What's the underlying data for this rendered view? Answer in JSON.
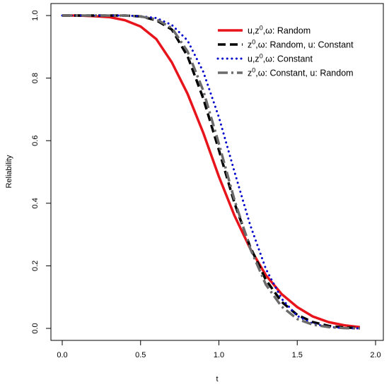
{
  "chart_data": {
    "type": "line",
    "title": "",
    "xlabel": "t",
    "ylabel": "Reliability",
    "xlim": [
      0,
      2
    ],
    "ylim": [
      0,
      1
    ],
    "xticks": [
      "0.0",
      "0.5",
      "1.0",
      "1.5",
      "2.0"
    ],
    "yticks": [
      "0.0",
      "0.2",
      "0.4",
      "0.6",
      "0.8",
      "1.0"
    ],
    "grid": false,
    "legend_position": "top-right",
    "series": [
      {
        "name_parts": [
          "u,z",
          "0",
          ",ω: Random"
        ],
        "color": "#e8141c",
        "style": "solid",
        "points": [
          [
            0.0,
            1.0
          ],
          [
            0.1,
            1.0
          ],
          [
            0.2,
            0.998
          ],
          [
            0.3,
            0.995
          ],
          [
            0.4,
            0.985
          ],
          [
            0.5,
            0.965
          ],
          [
            0.6,
            0.925
          ],
          [
            0.7,
            0.85
          ],
          [
            0.8,
            0.75
          ],
          [
            0.9,
            0.625
          ],
          [
            1.0,
            0.485
          ],
          [
            1.1,
            0.36
          ],
          [
            1.2,
            0.255
          ],
          [
            1.3,
            0.17
          ],
          [
            1.4,
            0.11
          ],
          [
            1.5,
            0.068
          ],
          [
            1.6,
            0.038
          ],
          [
            1.7,
            0.02
          ],
          [
            1.8,
            0.01
          ],
          [
            1.9,
            0.004
          ]
        ]
      },
      {
        "name_parts": [
          "z",
          "0",
          ",ω: Random, u: Constant"
        ],
        "color": "#000000",
        "style": "dash",
        "points": [
          [
            0.0,
            1.0
          ],
          [
            0.1,
            1.0
          ],
          [
            0.2,
            1.0
          ],
          [
            0.3,
            1.0
          ],
          [
            0.4,
            1.0
          ],
          [
            0.5,
            0.997
          ],
          [
            0.6,
            0.985
          ],
          [
            0.7,
            0.955
          ],
          [
            0.8,
            0.87
          ],
          [
            0.9,
            0.735
          ],
          [
            1.0,
            0.57
          ],
          [
            1.1,
            0.4
          ],
          [
            1.2,
            0.26
          ],
          [
            1.3,
            0.155
          ],
          [
            1.4,
            0.085
          ],
          [
            1.5,
            0.043
          ],
          [
            1.6,
            0.02
          ],
          [
            1.7,
            0.008
          ],
          [
            1.8,
            0.003
          ],
          [
            1.9,
            0.001
          ]
        ]
      },
      {
        "name_parts": [
          "u,z",
          "0",
          ",ω: Constant"
        ],
        "color": "#0000cd",
        "style": "dot",
        "points": [
          [
            0.0,
            1.0
          ],
          [
            0.1,
            1.0
          ],
          [
            0.2,
            1.0
          ],
          [
            0.3,
            1.0
          ],
          [
            0.4,
            1.0
          ],
          [
            0.5,
            0.998
          ],
          [
            0.6,
            0.992
          ],
          [
            0.7,
            0.97
          ],
          [
            0.8,
            0.92
          ],
          [
            0.9,
            0.82
          ],
          [
            1.0,
            0.675
          ],
          [
            1.1,
            0.5
          ],
          [
            1.2,
            0.33
          ],
          [
            1.3,
            0.19
          ],
          [
            1.4,
            0.095
          ],
          [
            1.5,
            0.04
          ],
          [
            1.6,
            0.015
          ],
          [
            1.7,
            0.005
          ],
          [
            1.8,
            0.001
          ],
          [
            1.9,
            0.0
          ]
        ]
      },
      {
        "name_parts": [
          "z",
          "0",
          ",ω: Constant, u: Random"
        ],
        "color": "#6b6b6b",
        "style": "dashdot",
        "points": [
          [
            0.0,
            1.0
          ],
          [
            0.1,
            1.0
          ],
          [
            0.2,
            1.0
          ],
          [
            0.3,
            1.0
          ],
          [
            0.4,
            1.0
          ],
          [
            0.5,
            0.997
          ],
          [
            0.6,
            0.988
          ],
          [
            0.7,
            0.96
          ],
          [
            0.8,
            0.885
          ],
          [
            0.9,
            0.76
          ],
          [
            1.0,
            0.59
          ],
          [
            1.1,
            0.41
          ],
          [
            1.2,
            0.255
          ],
          [
            1.3,
            0.14
          ],
          [
            1.4,
            0.07
          ],
          [
            1.5,
            0.03
          ],
          [
            1.6,
            0.012
          ],
          [
            1.7,
            0.004
          ],
          [
            1.8,
            0.001
          ],
          [
            1.9,
            0.0
          ]
        ]
      }
    ]
  }
}
